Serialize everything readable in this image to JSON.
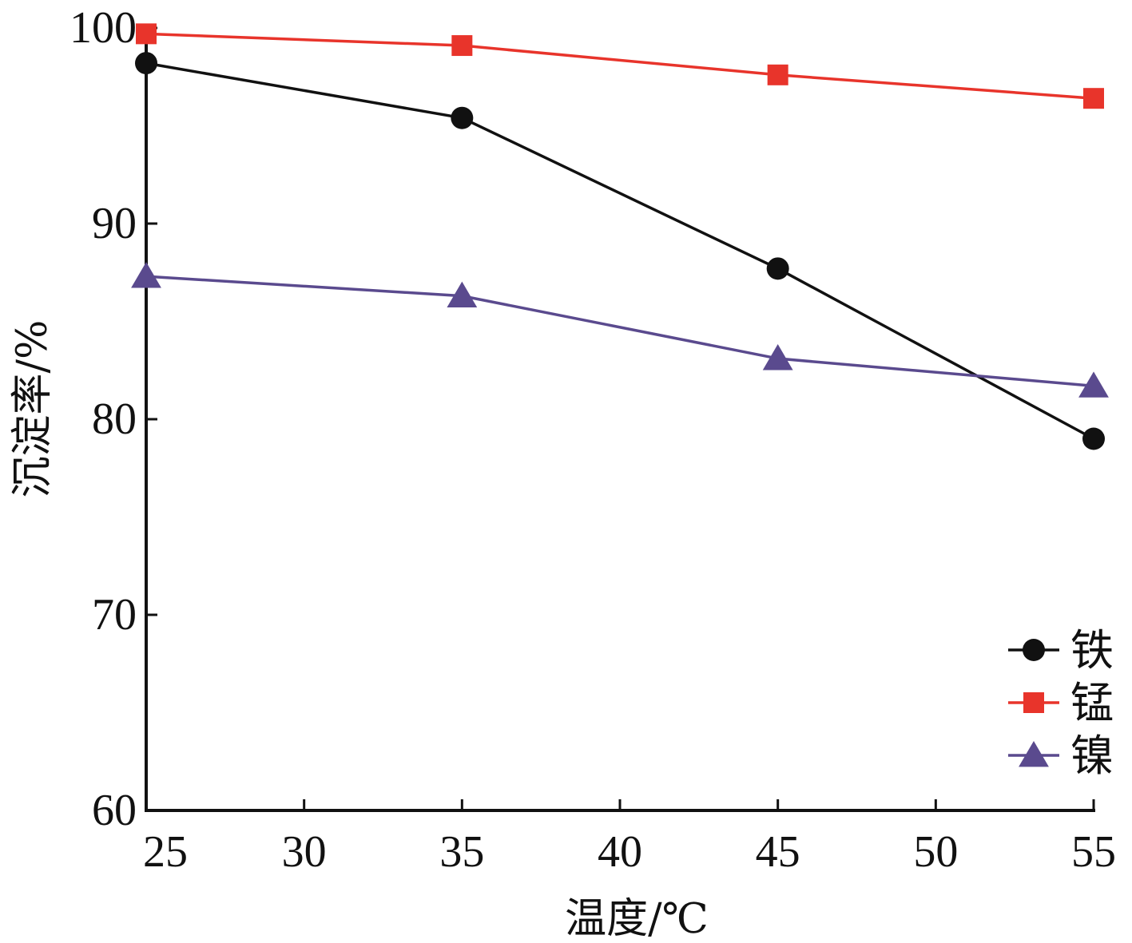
{
  "chart_data": {
    "type": "line",
    "title": "",
    "xlabel": "温度/℃",
    "ylabel": "沉淀率/%",
    "x": [
      25,
      35,
      45,
      55
    ],
    "xlim": [
      25,
      55
    ],
    "ylim": [
      60,
      100
    ],
    "xticks": [
      25,
      30,
      35,
      40,
      45,
      50,
      55
    ],
    "yticks": [
      60,
      70,
      80,
      90,
      100
    ],
    "xtick_labels": [
      "25",
      "30",
      "35",
      "40",
      "45",
      "50",
      "55"
    ],
    "ytick_labels": [
      "60",
      "70",
      "80",
      "90",
      "100"
    ],
    "grid": false,
    "legend_position": "bottom-right",
    "series": [
      {
        "name": "铁",
        "values": [
          98.2,
          95.4,
          87.7,
          79.0
        ],
        "color": "#111111",
        "marker": "circle"
      },
      {
        "name": "锰",
        "values": [
          99.7,
          99.1,
          97.6,
          96.4
        ],
        "color": "#e8342b",
        "marker": "square"
      },
      {
        "name": "镍",
        "values": [
          87.3,
          86.3,
          83.1,
          81.7
        ],
        "color": "#5a4a8e",
        "marker": "triangle"
      }
    ]
  }
}
